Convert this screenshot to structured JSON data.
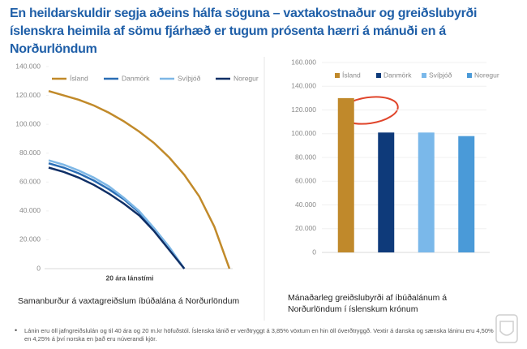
{
  "title": "En heildarskuldir segja aðeins hálfa söguna – vaxtakostnaður og greiðslubyrði íslenskra heimila af sömu fjárhæð er tugum prósenta hærri á mánuði en á Norðurlöndum",
  "chart_data": [
    {
      "type": "line",
      "caption": "Samanburður á vaxtagreiðslum íbúðalána á Norðurlöndum",
      "xlabel": "20 ára lánstími",
      "legend": "top",
      "categories": [
        null,
        null,
        null,
        null,
        null,
        null,
        null,
        null,
        null,
        null,
        null,
        null,
        null
      ],
      "series": [
        {
          "name": "Ísland",
          "color": "#c18a2a",
          "values": [
            123000,
            120000,
            117000,
            113000,
            108000,
            102000,
            95000,
            87000,
            77000,
            65000,
            50000,
            29000,
            0
          ]
        },
        {
          "name": "Danmörk",
          "color": "#2a6db5",
          "values": [
            73000,
            70000,
            66000,
            61000,
            55000,
            48000,
            39000,
            27000,
            14000,
            0,
            null,
            null,
            null
          ]
        },
        {
          "name": "Svíþjóð",
          "color": "#7db7e6",
          "values": [
            75000,
            72000,
            68000,
            63000,
            57000,
            49000,
            40000,
            28000,
            15000,
            0,
            null,
            null,
            null
          ]
        },
        {
          "name": "Noregur",
          "color": "#0f2f66",
          "values": [
            70000,
            67000,
            63000,
            58000,
            52000,
            45000,
            37000,
            26000,
            13000,
            0,
            null,
            null,
            null
          ]
        }
      ],
      "ylim": [
        0,
        140000
      ],
      "yticks": [
        0,
        {
          "value": 20000,
          "label": "20.000"
        },
        {
          "value": 40000,
          "label": "40.000"
        },
        {
          "value": 60000,
          "label": "60.000"
        },
        {
          "value": 80000,
          "label": "80.000"
        },
        {
          "value": 100000,
          "label": "100.000"
        },
        {
          "value": 120000,
          "label": "120.000"
        },
        {
          "value": 140000,
          "label": "140.000"
        }
      ]
    },
    {
      "type": "bar",
      "caption": "Mánaðarleg greiðslubyrði af íbúðalánum á Norðurlöndum í íslenskum krónum",
      "legend": "top",
      "categories": [
        "Ísland",
        "Danmörk",
        "Svíþjóð",
        "Noregur"
      ],
      "values": [
        130000,
        101000,
        101000,
        98000
      ],
      "colors": [
        "#c0892b",
        "#0e3a7a",
        "#7ab8ea",
        "#4a9ad8"
      ],
      "ylim": [
        0,
        160000
      ],
      "yticks": [
        0,
        {
          "value": 20000,
          "label": "20.000"
        },
        {
          "value": 40000,
          "label": "40.000"
        },
        {
          "value": 60000,
          "label": "60.000"
        },
        {
          "value": 80000,
          "label": "80.000"
        },
        {
          "value": 100000,
          "label": "100.000"
        },
        {
          "value": 120000,
          "label": "120.000"
        },
        {
          "value": 140000,
          "label": "140.000"
        },
        {
          "value": 160000,
          "label": "160.000"
        }
      ]
    }
  ],
  "footnote": "Lánin eru öll jafngreiðslulán og til 40 ára og 20 m.kr höfuðstól. Íslenska lánið er verðtryggt á 3,85% vöxtum en hin öll óverðtryggð. Vextir á danska og sænska láninu eru 4,50% en 4,25% á því norska en það eru núverandi kjör."
}
